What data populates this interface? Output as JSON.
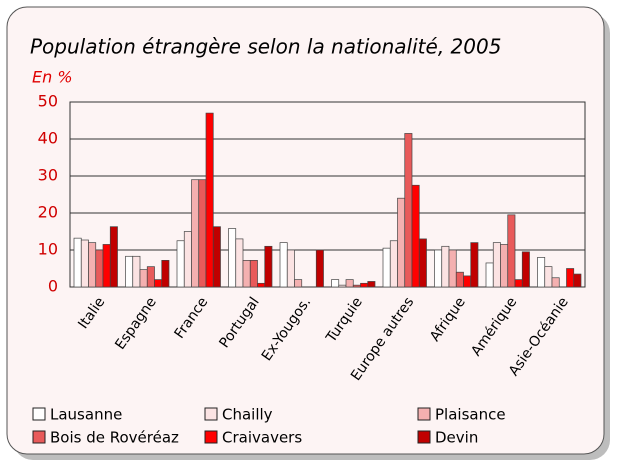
{
  "chart_data": {
    "type": "bar",
    "title": "Population étrangère selon la nationalité, 2005",
    "subtitle": "En %",
    "categories": [
      "Italie",
      "Espagne",
      "France",
      "Portugal",
      "Ex-Yougos.",
      "Turquie",
      "Europe autres",
      "Afrique",
      "Amérique",
      "Asie-Océanie"
    ],
    "series": [
      {
        "name": "Lausanne",
        "color": "#ffffff",
        "values": [
          13.2,
          8.3,
          12.5,
          15.8,
          12,
          2,
          10.5,
          10,
          6.5,
          8
        ]
      },
      {
        "name": "Chailly",
        "color": "#fbe3e3",
        "values": [
          12.7,
          8.3,
          15,
          13,
          10,
          0.5,
          12.5,
          11,
          12,
          5.5
        ]
      },
      {
        "name": "Plaisance",
        "color": "#f4b0b0",
        "values": [
          12,
          4.7,
          29,
          7.2,
          2,
          2,
          24,
          10,
          11.5,
          2.5
        ]
      },
      {
        "name": "Bois de Rovéréaz",
        "color": "#e85a5a",
        "values": [
          10,
          5.5,
          29,
          7.2,
          0,
          0.5,
          41.5,
          4,
          19.5,
          0
        ]
      },
      {
        "name": "Craivavers",
        "color": "#ff0000",
        "values": [
          11.5,
          2,
          47,
          1,
          0,
          1,
          27.5,
          3,
          2,
          5
        ]
      },
      {
        "name": "Devin",
        "color": "#c00000",
        "values": [
          16.3,
          7.2,
          16.3,
          11,
          10,
          1.5,
          13,
          12,
          9.5,
          3.5
        ]
      }
    ],
    "ylim": [
      0,
      50
    ],
    "yticks": [
      0,
      10,
      20,
      30,
      40,
      50
    ],
    "grid": true
  }
}
